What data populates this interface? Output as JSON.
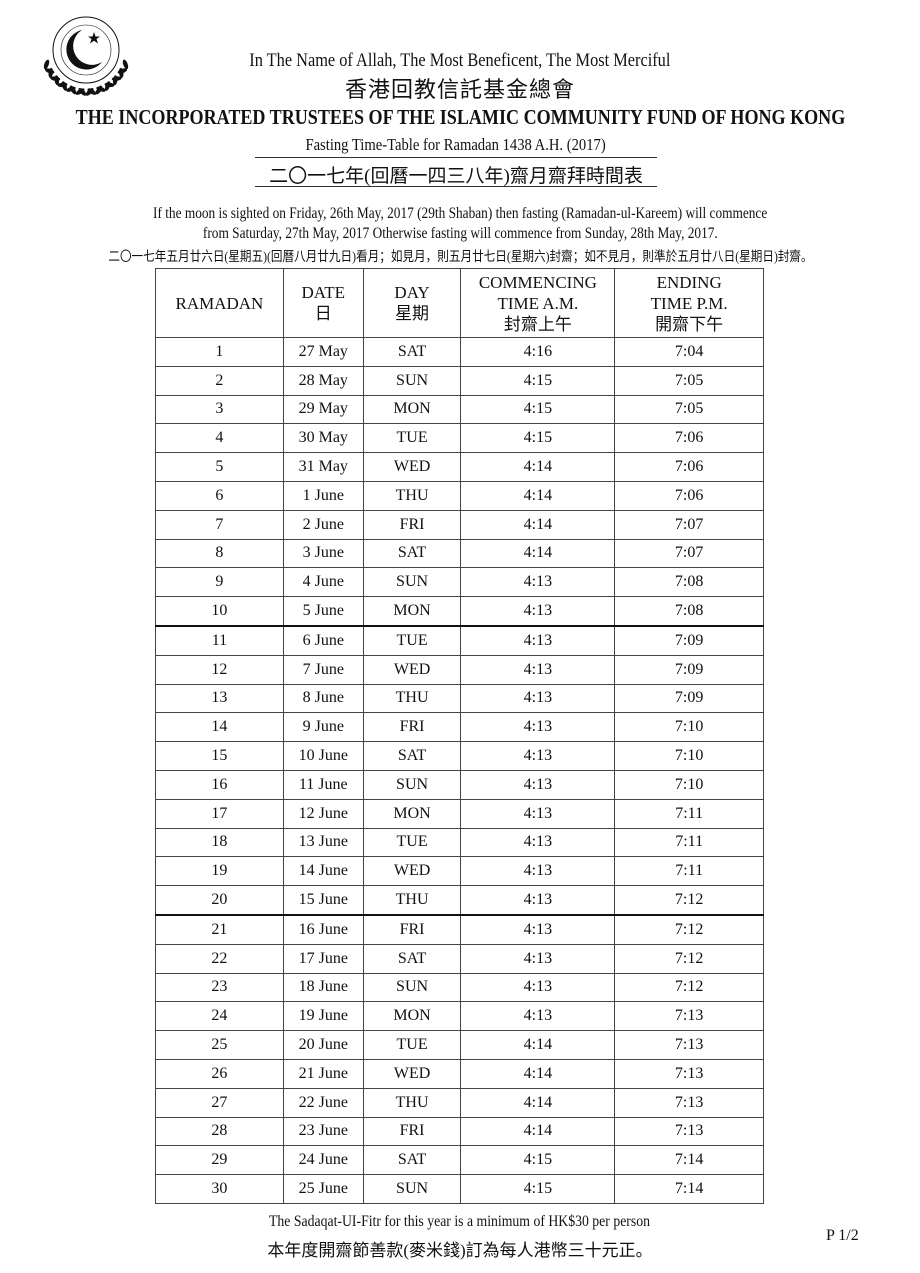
{
  "header": {
    "bismillah": "In The Name of Allah, The Most Beneficent, The Most Merciful",
    "org_chinese": "香港回教信託基金總會",
    "org_english": "THE INCORPORATED TRUSTEES OF THE ISLAMIC COMMUNITY FUND OF HONG KONG",
    "title_english": "Fasting Time-Table for Ramadan 1438 A.H. (2017)",
    "title_chinese": "二〇一七年(回曆一四三八年)齋月齋拜時間表"
  },
  "notice": {
    "line1": "If the moon is sighted on Friday, 26th May, 2017 (29th Shaban) then fasting (Ramadan-ul-Kareem) will commence",
    "line2": "from Saturday, 27th May, 2017 Otherwise fasting will commence from Sunday, 28th May, 2017.",
    "chinese": "二〇一七年五月廿六日(星期五)(回曆八月廿九日)看月；如見月，則五月廿七日(星期六)封齋；如不見月，則準於五月廿八日(星期日)封齋。"
  },
  "table": {
    "headers": [
      {
        "l1": "RAMADAN",
        "l2": "",
        "l3": ""
      },
      {
        "l1": "DATE",
        "l2": "日",
        "l3": ""
      },
      {
        "l1": "DAY",
        "l2": "星期",
        "l3": ""
      },
      {
        "l1": "COMMENCING",
        "l2": "TIME A.M.",
        "l3": "封齋上午"
      },
      {
        "l1": "ENDING",
        "l2": "TIME P.M.",
        "l3": "開齋下午"
      }
    ],
    "rows": [
      [
        "1",
        "27 May",
        "SAT",
        "4:16",
        "7:04"
      ],
      [
        "2",
        "28 May",
        "SUN",
        "4:15",
        "7:05"
      ],
      [
        "3",
        "29 May",
        "MON",
        "4:15",
        "7:05"
      ],
      [
        "4",
        "30 May",
        "TUE",
        "4:15",
        "7:06"
      ],
      [
        "5",
        "31 May",
        "WED",
        "4:14",
        "7:06"
      ],
      [
        "6",
        "1 June",
        "THU",
        "4:14",
        "7:06"
      ],
      [
        "7",
        "2 June",
        "FRI",
        "4:14",
        "7:07"
      ],
      [
        "8",
        "3 June",
        "SAT",
        "4:14",
        "7:07"
      ],
      [
        "9",
        "4 June",
        "SUN",
        "4:13",
        "7:08"
      ],
      [
        "10",
        "5 June",
        "MON",
        "4:13",
        "7:08"
      ],
      [
        "11",
        "6 June",
        "TUE",
        "4:13",
        "7:09"
      ],
      [
        "12",
        "7 June",
        "WED",
        "4:13",
        "7:09"
      ],
      [
        "13",
        "8 June",
        "THU",
        "4:13",
        "7:09"
      ],
      [
        "14",
        "9 June",
        "FRI",
        "4:13",
        "7:10"
      ],
      [
        "15",
        "10 June",
        "SAT",
        "4:13",
        "7:10"
      ],
      [
        "16",
        "11 June",
        "SUN",
        "4:13",
        "7:10"
      ],
      [
        "17",
        "12 June",
        "MON",
        "4:13",
        "7:11"
      ],
      [
        "18",
        "13 June",
        "TUE",
        "4:13",
        "7:11"
      ],
      [
        "19",
        "14 June",
        "WED",
        "4:13",
        "7:11"
      ],
      [
        "20",
        "15 June",
        "THU",
        "4:13",
        "7:12"
      ],
      [
        "21",
        "16 June",
        "FRI",
        "4:13",
        "7:12"
      ],
      [
        "22",
        "17 June",
        "SAT",
        "4:13",
        "7:12"
      ],
      [
        "23",
        "18 June",
        "SUN",
        "4:13",
        "7:12"
      ],
      [
        "24",
        "19 June",
        "MON",
        "4:13",
        "7:13"
      ],
      [
        "25",
        "20 June",
        "TUE",
        "4:14",
        "7:13"
      ],
      [
        "26",
        "21 June",
        "WED",
        "4:14",
        "7:13"
      ],
      [
        "27",
        "22 June",
        "THU",
        "4:14",
        "7:13"
      ],
      [
        "28",
        "23 June",
        "FRI",
        "4:14",
        "7:13"
      ],
      [
        "29",
        "24 June",
        "SAT",
        "4:15",
        "7:14"
      ],
      [
        "30",
        "25 June",
        "SUN",
        "4:15",
        "7:14"
      ]
    ]
  },
  "footer": {
    "english": "The Sadaqat-UI-Fitr for this year is a minimum of HK$30 per person",
    "chinese": "本年度開齋節善款(麥米錢)訂為每人港幣三十元正。",
    "page": "P 1/2"
  },
  "logo": {
    "icon": "crescent-star-laurel-emblem"
  }
}
